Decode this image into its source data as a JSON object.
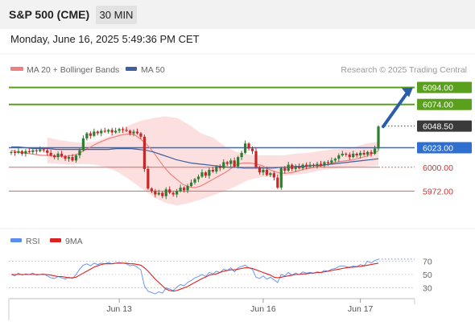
{
  "header": {
    "title": "S&P 500 (CME)",
    "timeframe": "30 MIN",
    "datetime": "Monday, June 16, 2025 5:49:36 PM CET"
  },
  "legend": {
    "ma20_label": "MA 20 + Bollinger Bands",
    "ma50_label": "MA 50",
    "source": "Research © 2025 Trading Central"
  },
  "rsi_legend": {
    "rsi_label": "RSI",
    "ma_label": "9MA"
  },
  "colors": {
    "bull": "#2e7d32",
    "bear": "#c62828",
    "resistance": "#5aa01e",
    "pivot": "#2f6fd0",
    "support": "#e06060",
    "ma20": "#f08080",
    "ma50": "#3f5f9f",
    "band_fill": "#fbd5d5",
    "rsi": "#5b8def",
    "rsi_ma": "#dd2222",
    "arrow": "#2a5ea8"
  },
  "chart_data": [
    {
      "type": "candlestick",
      "y_range": [
        5960,
        6105
      ],
      "x_ticks": [
        {
          "label": "Jun 13",
          "bar": 30
        },
        {
          "label": "Jun 16",
          "bar": 70
        },
        {
          "label": "Jun 17",
          "bar": 97
        }
      ],
      "levels": [
        {
          "value": 6094.0,
          "label": "6094.00",
          "kind": "resistance"
        },
        {
          "value": 6074.0,
          "label": "6074.00",
          "kind": "resistance"
        },
        {
          "value": 6048.5,
          "label": "6048.50",
          "kind": "last"
        },
        {
          "value": 6023.0,
          "label": "6023.00",
          "kind": "pivot"
        },
        {
          "value": 6000.0,
          "label": "6000.00",
          "kind": "support"
        },
        {
          "value": 5972.0,
          "label": "5972.00",
          "kind": "support"
        }
      ],
      "ohlc_closes": [
        6018,
        6017,
        6019,
        6016,
        6019,
        6018,
        6020,
        6019,
        6021,
        6020,
        6017,
        6014,
        6012,
        6016,
        6013,
        6010,
        6012,
        6008,
        6014,
        6020,
        6034,
        6040,
        6037,
        6042,
        6040,
        6043,
        6042,
        6044,
        6041,
        6043,
        6045,
        6044,
        6043,
        6040,
        6042,
        6040,
        6036,
        5998,
        5975,
        5972,
        5968,
        5970,
        5966,
        5974,
        5970,
        5968,
        5972,
        5976,
        5973,
        5978,
        5982,
        5986,
        5989,
        5994,
        5990,
        5997,
        5995,
        6001,
        5999,
        6006,
        6004,
        6008,
        6001,
        6012,
        6017,
        6028,
        6022,
        6019,
        6000,
        5994,
        5997,
        5991,
        5993,
        5988,
        5976,
        5999,
        5996,
        6003,
        5998,
        6001,
        5999,
        6003,
        6001,
        6003,
        6002,
        6004,
        6002,
        6006,
        6005,
        6008,
        6010,
        6014,
        6016,
        6015,
        6012,
        6016,
        6014,
        6017,
        6015,
        6018,
        6016,
        6022,
        6048
      ],
      "ma20": [
        6020,
        6018,
        6017,
        6016,
        6015,
        6014,
        6014,
        6013,
        6013,
        6013,
        6014,
        6016,
        6020,
        6024,
        6028,
        6031,
        6034,
        6036,
        6038,
        6039,
        6039,
        6034,
        6028,
        6020,
        6010,
        6000,
        5992,
        5986,
        5980,
        5977,
        5976,
        5978,
        5982,
        5986,
        5990,
        5994,
        5999,
        6004,
        6005,
        6005,
        6004,
        6002,
        5998,
        5995,
        5993,
        5993,
        5994,
        5996,
        5998,
        5999,
        6001,
        6002,
        6004,
        6006,
        6007,
        6008,
        6009,
        6011,
        6013,
        6016,
        6019
      ],
      "ma50": [
        6024,
        6024,
        6023,
        6022,
        6022,
        6022,
        6021,
        6021,
        6021,
        6021,
        6021,
        6021,
        6021,
        6021,
        6022,
        6022,
        6022,
        6021,
        6020,
        6018,
        6015,
        6012,
        6009,
        6007,
        6005,
        6004,
        6003,
        6002,
        6001,
        6000,
        6000,
        5999,
        5999,
        5999,
        5999,
        5999,
        6000,
        6000,
        6001,
        6001,
        6002,
        6002,
        6003,
        6004,
        6005,
        6006,
        6007,
        6008,
        6009,
        6010
      ],
      "bb_upper": [
        6035,
        6032,
        6030,
        6029,
        6030,
        6035,
        6042,
        6050,
        6055,
        6058,
        6060,
        6058,
        6050,
        6040,
        6035,
        6025,
        6018,
        6015,
        6014,
        6014,
        6014,
        6016,
        6017,
        6019,
        6021,
        6022,
        6024,
        6028,
        6030
      ],
      "bb_lower": [
        6005,
        6004,
        6003,
        6004,
        6003,
        6000,
        5994,
        5985,
        5975,
        5965,
        5958,
        5955,
        5958,
        5962,
        5967,
        5972,
        5978,
        5985,
        5988,
        5989,
        5990,
        5991,
        5993,
        5996,
        5998,
        5999,
        6000,
        6001,
        6002
      ],
      "projection": {
        "from": 6048,
        "to": 6094
      }
    },
    {
      "type": "line",
      "title": "RSI",
      "y_ticks": [
        70,
        50,
        30
      ],
      "y_range": [
        15,
        85
      ],
      "series": [
        {
          "name": "RSI",
          "values": [
            50,
            48,
            52,
            49,
            51,
            50,
            52,
            49,
            50,
            51,
            48,
            45,
            44,
            47,
            45,
            43,
            46,
            44,
            50,
            58,
            64,
            66,
            63,
            67,
            65,
            67,
            66,
            68,
            66,
            67,
            68,
            67,
            66,
            63,
            64,
            61,
            57,
            33,
            25,
            23,
            21,
            24,
            22,
            30,
            28,
            26,
            31,
            35,
            33,
            38,
            41,
            45,
            47,
            50,
            47,
            53,
            51,
            55,
            53,
            58,
            56,
            60,
            54,
            60,
            62,
            64,
            60,
            58,
            46,
            44,
            48,
            43,
            46,
            42,
            38,
            50,
            48,
            53,
            49,
            52,
            50,
            54,
            52,
            53,
            52,
            54,
            53,
            56,
            55,
            58,
            59,
            62,
            63,
            62,
            60,
            63,
            61,
            65,
            63,
            70,
            67,
            71,
            73
          ]
        },
        {
          "name": "9MA",
          "values": [
            50,
            50,
            50,
            50,
            50,
            50,
            50,
            50,
            50,
            50,
            50,
            49,
            48,
            47,
            47,
            46,
            45,
            45,
            46,
            49,
            52,
            55,
            58,
            61,
            63,
            65,
            66,
            66,
            66,
            67,
            67,
            67,
            67,
            66,
            66,
            65,
            64,
            60,
            55,
            49,
            43,
            38,
            33,
            28,
            26,
            25,
            26,
            28,
            30,
            32,
            35,
            38,
            41,
            44,
            46,
            49,
            50,
            51,
            53,
            55,
            56,
            57,
            57,
            58,
            59,
            60,
            60,
            59,
            57,
            55,
            53,
            51,
            49,
            46,
            45,
            46,
            47,
            48,
            49,
            50,
            50,
            51,
            51,
            52,
            52,
            53,
            53,
            54,
            55,
            56,
            57,
            58,
            59,
            60,
            61,
            61,
            62,
            62,
            63,
            64,
            65,
            66,
            67
          ]
        }
      ]
    }
  ]
}
